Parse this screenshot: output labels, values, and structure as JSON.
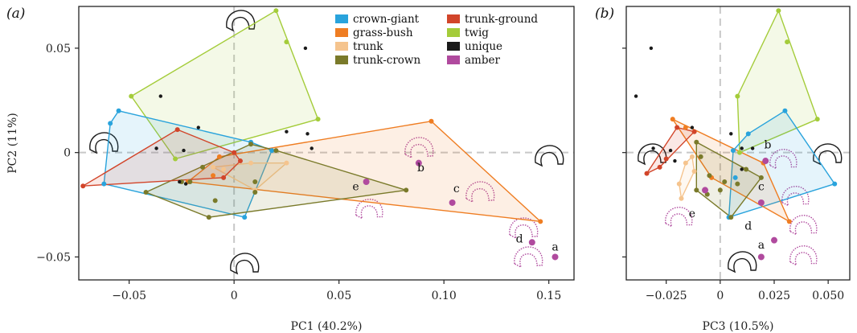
{
  "chart_data": [
    {
      "panel": "(a)",
      "type": "scatter",
      "xlabel": "PC1 (40.2%)",
      "ylabel": "PC2 (11%)",
      "xlim": [
        -0.074,
        0.162
      ],
      "ylim": [
        -0.061,
        0.07
      ],
      "xticks": [
        -0.05,
        0,
        0.05,
        0.1,
        0.15
      ],
      "xtick_labels": [
        "−0.05",
        "0",
        "0.05",
        "0.10",
        "0.15"
      ],
      "yticks": [
        -0.05,
        0,
        0.05
      ],
      "ytick_labels": [
        "−0.05",
        "0",
        "0.05"
      ],
      "reference_lines": {
        "x": 0,
        "y": 0,
        "style": "dashed grey"
      },
      "legend": {
        "placement": "top-center",
        "entries": [
          {
            "label": "crown-giant",
            "color": "#29a3dc"
          },
          {
            "label": "grass-bush",
            "color": "#ef7d22"
          },
          {
            "label": "trunk",
            "color": "#f5c48e"
          },
          {
            "label": "trunk-crown",
            "color": "#7a7a2a"
          },
          {
            "label": "trunk-ground",
            "color": "#d2452a"
          },
          {
            "label": "twig",
            "color": "#a4cc3a"
          },
          {
            "label": "unique",
            "color": "#1a1a1a"
          },
          {
            "label": "amber",
            "color": "#b04a9e"
          }
        ]
      },
      "series": [
        {
          "name": "twig",
          "color": "#a4cc3a",
          "points": [
            [
              -0.049,
              0.027
            ],
            [
              0.02,
              0.068
            ],
            [
              0.025,
              0.053
            ],
            [
              0.04,
              0.016
            ],
            [
              -0.028,
              -0.003
            ]
          ]
        },
        {
          "name": "crown-giant",
          "color": "#29a3dc",
          "points": [
            [
              -0.055,
              0.02
            ],
            [
              -0.059,
              0.014
            ],
            [
              -0.062,
              -0.015
            ],
            [
              0.005,
              -0.031
            ],
            [
              0.018,
              0.001
            ],
            [
              0.008,
              0.005
            ]
          ]
        },
        {
          "name": "grass-bush",
          "color": "#ef7d22",
          "points": [
            [
              -0.007,
              -0.002
            ],
            [
              0.094,
              0.015
            ],
            [
              0.146,
              -0.033
            ],
            [
              -0.01,
              -0.011
            ],
            [
              -0.022,
              -0.014
            ]
          ]
        },
        {
          "name": "trunk",
          "color": "#f5c48e",
          "points": [
            [
              -0.01,
              -0.007
            ],
            [
              0.025,
              -0.005
            ],
            [
              0.01,
              -0.018
            ],
            [
              0.008,
              -0.005
            ],
            [
              -0.005,
              -0.008
            ]
          ]
        },
        {
          "name": "trunk-crown",
          "color": "#7a7a2a",
          "points": [
            [
              -0.042,
              -0.019
            ],
            [
              -0.012,
              -0.031
            ],
            [
              0.082,
              -0.018
            ],
            [
              0.02,
              0.001
            ],
            [
              0.008,
              0.004
            ],
            [
              -0.015,
              -0.007
            ],
            [
              -0.021,
              -0.014
            ],
            [
              -0.009,
              -0.023
            ],
            [
              0.01,
              -0.014
            ],
            [
              0.01,
              -0.019
            ],
            [
              -0.025,
              -0.014
            ]
          ]
        },
        {
          "name": "trunk-ground",
          "color": "#d2452a",
          "points": [
            [
              -0.072,
              -0.016
            ],
            [
              -0.027,
              0.011
            ],
            [
              -0.005,
              -0.012
            ],
            [
              0.003,
              -0.004
            ],
            [
              0.0,
              0.0
            ]
          ]
        },
        {
          "name": "unique",
          "color": "#1a1a1a",
          "points": [
            [
              -0.035,
              0.027
            ],
            [
              0.034,
              0.05
            ],
            [
              -0.017,
              0.012
            ],
            [
              -0.024,
              0.001
            ],
            [
              -0.037,
              0.002
            ],
            [
              0.035,
              0.009
            ],
            [
              0.037,
              0.002
            ],
            [
              0.025,
              0.01
            ],
            [
              -0.023,
              -0.015
            ],
            [
              -0.026,
              -0.014
            ]
          ]
        },
        {
          "name": "amber",
          "color": "#b04a9e",
          "points": [
            [
              0.063,
              -0.014
            ],
            [
              0.088,
              -0.005
            ],
            [
              0.104,
              -0.024
            ],
            [
              0.153,
              -0.05
            ],
            [
              0.142,
              -0.043
            ]
          ]
        }
      ],
      "hulls": [
        "twig",
        "crown-giant",
        "grass-bush",
        "trunk",
        "trunk-crown",
        "trunk-ground"
      ],
      "annotations": [
        {
          "text": "e",
          "x": 0.058,
          "y": -0.018
        },
        {
          "text": "b",
          "x": 0.089,
          "y": -0.009
        },
        {
          "text": "c",
          "x": 0.106,
          "y": -0.019
        },
        {
          "text": "d",
          "x": 0.136,
          "y": -0.043
        },
        {
          "text": "a",
          "x": 0.153,
          "y": -0.047
        }
      ]
    },
    {
      "panel": "(b)",
      "type": "scatter",
      "xlabel": "PC3 (10.5%)",
      "xlim": [
        -0.0435,
        0.06
      ],
      "ylim": [
        -0.061,
        0.07
      ],
      "xticks": [
        -0.025,
        0,
        0.025,
        0.05
      ],
      "xtick_labels": [
        "−0.025",
        "0",
        "0.025",
        "0.050"
      ],
      "yticks": [
        -0.05,
        0,
        0.05
      ],
      "reference_lines": {
        "x": 0,
        "y": 0,
        "style": "dashed grey"
      },
      "series": [
        {
          "name": "twig",
          "color": "#a4cc3a",
          "points": [
            [
              0.008,
              0.027
            ],
            [
              0.027,
              0.068
            ],
            [
              0.031,
              0.053
            ],
            [
              0.045,
              0.016
            ],
            [
              0.009,
              0.0
            ]
          ]
        },
        {
          "name": "crown-giant",
          "color": "#29a3dc",
          "points": [
            [
              0.013,
              0.009
            ],
            [
              0.03,
              0.02
            ],
            [
              0.053,
              -0.015
            ],
            [
              0.004,
              -0.031
            ],
            [
              0.007,
              -0.012
            ],
            [
              0.006,
              0.001
            ]
          ]
        },
        {
          "name": "grass-bush",
          "color": "#ef7d22",
          "points": [
            [
              -0.022,
              0.016
            ],
            [
              -0.016,
              0.012
            ],
            [
              0.032,
              -0.033
            ],
            [
              0.02,
              -0.005
            ],
            [
              -0.004,
              -0.012
            ]
          ]
        },
        {
          "name": "trunk",
          "color": "#f5c48e",
          "points": [
            [
              -0.019,
              -0.015
            ],
            [
              -0.013,
              -0.002
            ],
            [
              -0.018,
              -0.022
            ],
            [
              -0.016,
              -0.005
            ],
            [
              -0.012,
              -0.009
            ]
          ]
        },
        {
          "name": "trunk-crown",
          "color": "#7a7a2a",
          "points": [
            [
              -0.011,
              0.005
            ],
            [
              0.019,
              -0.012
            ],
            [
              0.005,
              -0.031
            ],
            [
              -0.005,
              -0.011
            ],
            [
              -0.011,
              -0.018
            ],
            [
              -0.006,
              -0.02
            ],
            [
              0.0,
              -0.018
            ],
            [
              0.008,
              -0.015
            ],
            [
              0.002,
              -0.014
            ],
            [
              0.012,
              -0.008
            ],
            [
              -0.009,
              -0.002
            ]
          ]
        },
        {
          "name": "trunk-ground",
          "color": "#d2452a",
          "points": [
            [
              -0.034,
              -0.01
            ],
            [
              -0.02,
              0.012
            ],
            [
              -0.012,
              0.01
            ],
            [
              -0.025,
              -0.003
            ],
            [
              -0.028,
              -0.007
            ]
          ]
        },
        {
          "name": "unique",
          "color": "#1a1a1a",
          "points": [
            [
              -0.032,
              0.05
            ],
            [
              -0.039,
              0.027
            ],
            [
              -0.013,
              0.012
            ],
            [
              0.005,
              0.009
            ],
            [
              0.01,
              -0.008
            ],
            [
              -0.031,
              0.002
            ],
            [
              -0.023,
              0.001
            ],
            [
              0.01,
              0.002
            ],
            [
              -0.021,
              -0.004
            ],
            [
              0.015,
              0.002
            ]
          ]
        },
        {
          "name": "amber",
          "color": "#b04a9e",
          "points": [
            [
              0.021,
              -0.004
            ],
            [
              0.019,
              -0.024
            ],
            [
              0.025,
              -0.042
            ],
            [
              0.019,
              -0.05
            ],
            [
              -0.007,
              -0.018
            ]
          ]
        }
      ],
      "hulls": [
        "twig",
        "crown-giant",
        "grass-bush",
        "trunk",
        "trunk-crown",
        "trunk-ground"
      ],
      "annotations": [
        {
          "text": "b",
          "x": 0.022,
          "y": 0.002
        },
        {
          "text": "c",
          "x": 0.019,
          "y": -0.018
        },
        {
          "text": "d",
          "x": 0.013,
          "y": -0.037
        },
        {
          "text": "a",
          "x": 0.019,
          "y": -0.046
        },
        {
          "text": "e",
          "x": -0.013,
          "y": -0.031
        }
      ]
    }
  ]
}
